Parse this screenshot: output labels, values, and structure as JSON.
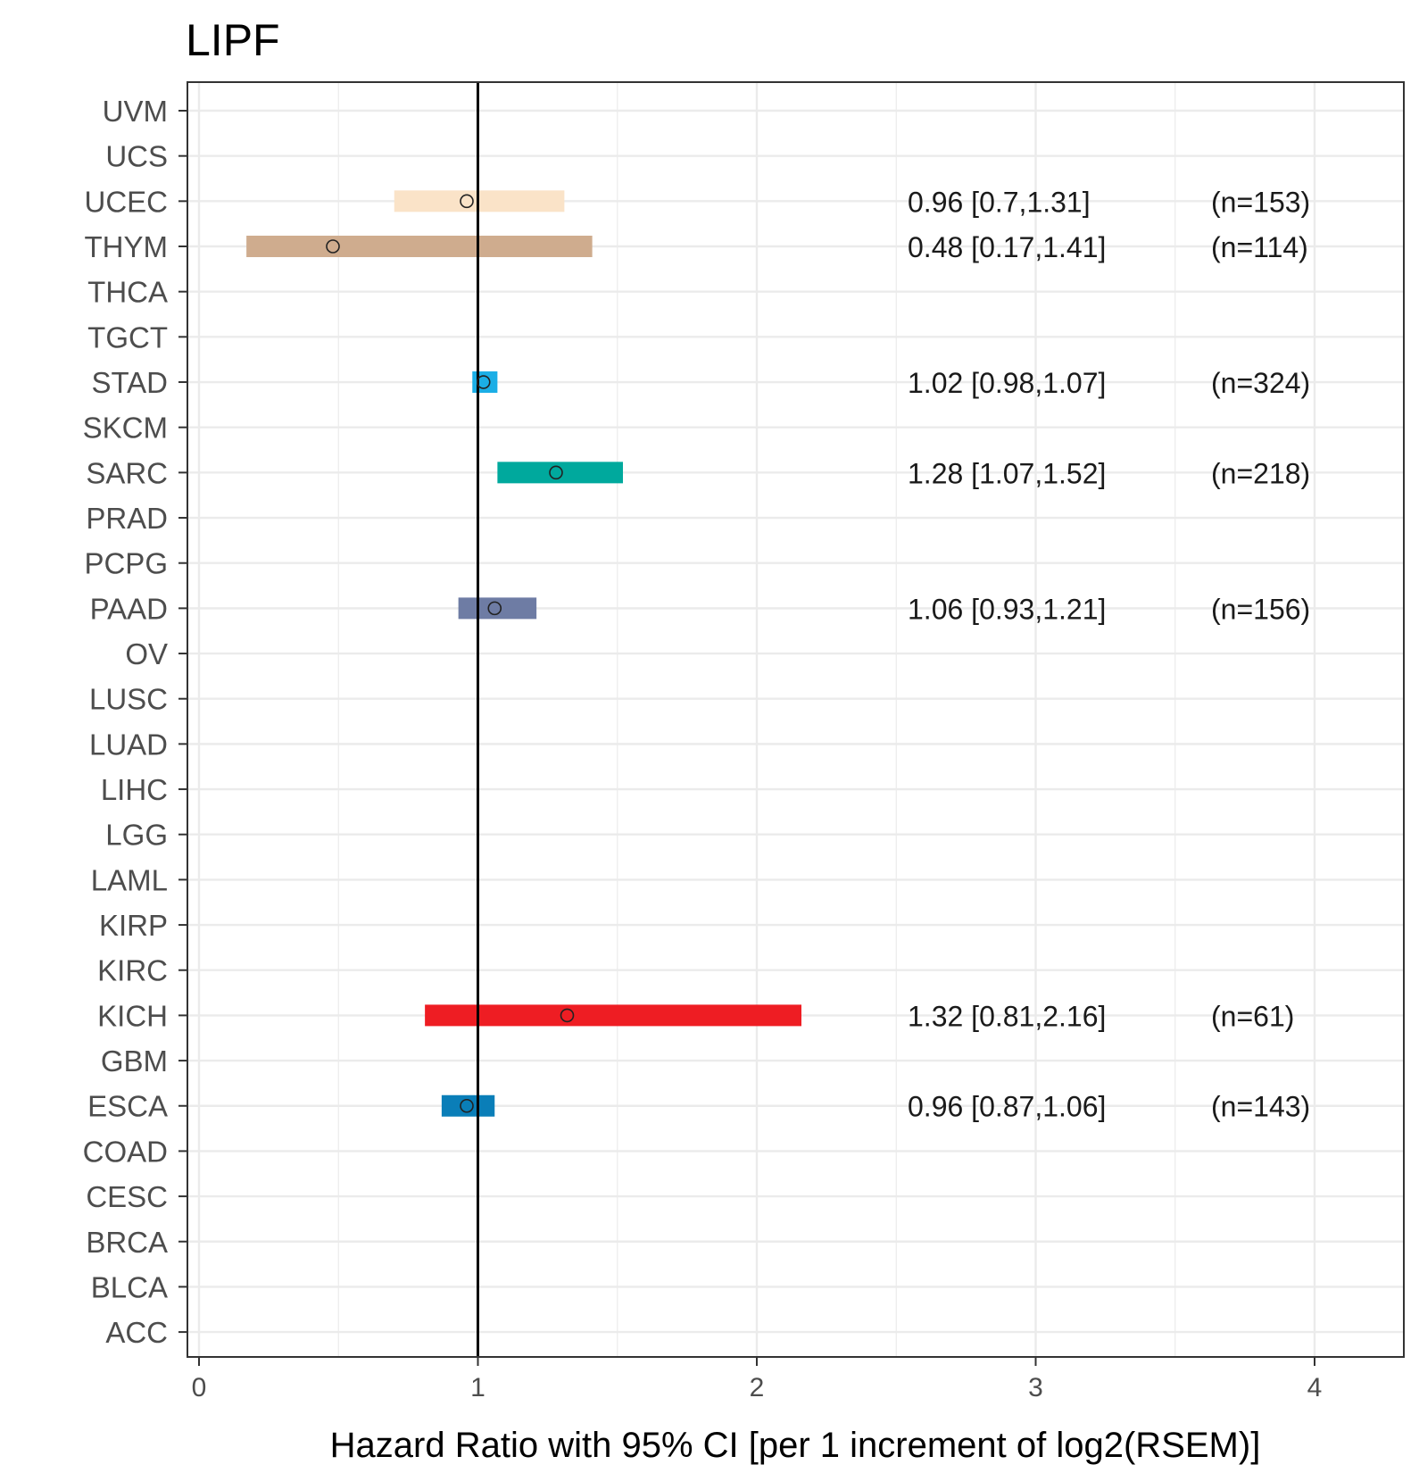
{
  "chart_data": {
    "type": "forest",
    "title": "LIPF",
    "xlabel": "Hazard Ratio with 95% CI [per 1 increment of log2(RSEM)]",
    "ylabel": "",
    "xlim": [
      0,
      4.3
    ],
    "xticks": [
      0,
      1,
      2,
      3,
      4
    ],
    "reference_line": 1,
    "grid": true,
    "categories": [
      "UVM",
      "UCS",
      "UCEC",
      "THYM",
      "THCA",
      "TGCT",
      "STAD",
      "SKCM",
      "SARC",
      "PRAD",
      "PCPG",
      "PAAD",
      "OV",
      "LUSC",
      "LUAD",
      "LIHC",
      "LGG",
      "LAML",
      "KIRP",
      "KIRC",
      "KICH",
      "GBM",
      "ESCA",
      "COAD",
      "CESC",
      "BRCA",
      "BLCA",
      "ACC"
    ],
    "rows": [
      {
        "category": "UCEC",
        "hr": 0.96,
        "lower": 0.7,
        "upper": 1.31,
        "label": "0.96 [0.7,1.31]",
        "n": "(n=153)",
        "color": "#FAE3C8"
      },
      {
        "category": "THYM",
        "hr": 0.48,
        "lower": 0.17,
        "upper": 1.41,
        "label": "0.48 [0.17,1.41]",
        "n": "(n=114)",
        "color": "#CFAC8E"
      },
      {
        "category": "STAD",
        "hr": 1.02,
        "lower": 0.98,
        "upper": 1.07,
        "label": "1.02 [0.98,1.07]",
        "n": "(n=324)",
        "color": "#1BAEE6"
      },
      {
        "category": "SARC",
        "hr": 1.28,
        "lower": 1.07,
        "upper": 1.52,
        "label": "1.28 [1.07,1.52]",
        "n": "(n=218)",
        "color": "#00A99D"
      },
      {
        "category": "PAAD",
        "hr": 1.06,
        "lower": 0.93,
        "upper": 1.21,
        "label": "1.06 [0.93,1.21]",
        "n": "(n=156)",
        "color": "#6E7CA4"
      },
      {
        "category": "KICH",
        "hr": 1.32,
        "lower": 0.81,
        "upper": 2.16,
        "label": "1.32 [0.81,2.16]",
        "n": "(n=61)",
        "color": "#EE1D23"
      },
      {
        "category": "ESCA",
        "hr": 0.96,
        "lower": 0.87,
        "upper": 1.06,
        "label": "0.96 [0.87,1.06]",
        "n": "(n=143)",
        "color": "#0A7EB8"
      }
    ]
  }
}
